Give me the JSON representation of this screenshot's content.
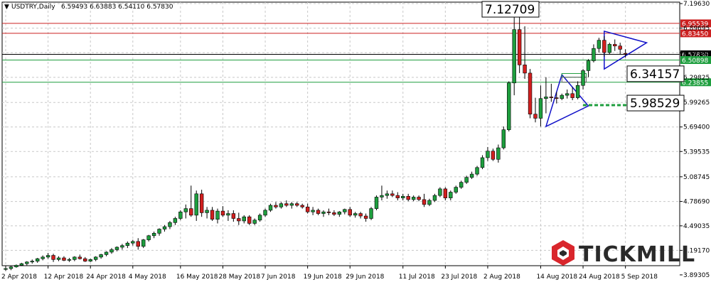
{
  "header": {
    "symbol_label": "USDTRY,Daily",
    "ohlc_text": "6.59493 6.63883 6.54110 6.57830",
    "triangle_glyph": "▼"
  },
  "logo": {
    "text": "TICKMILL",
    "icon": "tickmill-hexagon-logo-icon"
  },
  "colors": {
    "bull": "#1e9e3e",
    "bear": "#d21f1f",
    "grid": "#c8c8c8",
    "trend": "#1010c8",
    "resistance": "#cc2020",
    "support": "#1e9e3e",
    "current": "#000000"
  },
  "chart_data": {
    "type": "candlestick",
    "title": "USDTRY,Daily",
    "ylim": [
      3.78,
      7.24
    ],
    "y_ticks": [
      "7.19630",
      "6.89695",
      "6.59760",
      "6.29825",
      "5.99265",
      "5.69400",
      "5.39535",
      "5.08745",
      "4.78690",
      "4.49035",
      "4.19170",
      "3.89305"
    ],
    "x_ticks": [
      "2 Apr 2018",
      "12 Apr 2018",
      "24 Apr 2018",
      "4 May 2018",
      "16 May 2018",
      "28 May 2018",
      "7 Jun 2018",
      "19 Jun 2018",
      "29 Jun 2018",
      "11 Jul 2018",
      "23 Jul 2018",
      "2 Aug 2018",
      "14 Aug 2018",
      "24 Aug 2018",
      "5 Sep 2018"
    ],
    "x_tick_index": [
      0,
      8,
      16,
      24,
      33,
      41,
      49,
      57,
      65,
      75,
      83,
      91,
      101,
      109,
      117
    ],
    "grid": true,
    "price_levels": [
      {
        "label": "6.95539",
        "value": 6.95539,
        "kind": "resistance"
      },
      {
        "label": "6.83450",
        "value": 6.8345,
        "kind": "resistance"
      },
      {
        "label": "6.57830",
        "value": 6.5783,
        "kind": "current"
      },
      {
        "label": "6.50898",
        "value": 6.50898,
        "kind": "support"
      },
      {
        "label": "6.23855",
        "value": 6.23855,
        "kind": "support"
      }
    ],
    "callouts": [
      {
        "label": "7.12709",
        "value": 7.12709,
        "index": 104
      },
      {
        "label": "6.34157",
        "value": 6.34157,
        "index": 107
      },
      {
        "label": "5.98529",
        "value": 5.98529,
        "index": 108
      }
    ],
    "ohlc": [
      [
        3.96,
        3.99,
        3.94,
        3.97
      ],
      [
        3.97,
        4.0,
        3.95,
        3.99
      ],
      [
        3.99,
        4.02,
        3.98,
        4.01
      ],
      [
        4.01,
        4.04,
        4.0,
        4.03
      ],
      [
        4.03,
        4.06,
        4.01,
        4.05
      ],
      [
        4.05,
        4.08,
        4.03,
        4.06
      ],
      [
        4.06,
        4.1,
        4.04,
        4.09
      ],
      [
        4.09,
        4.13,
        4.07,
        4.11
      ],
      [
        4.11,
        4.16,
        4.09,
        4.13
      ],
      [
        4.13,
        4.15,
        4.05,
        4.08
      ],
      [
        4.08,
        4.12,
        4.06,
        4.1
      ],
      [
        4.1,
        4.12,
        4.06,
        4.07
      ],
      [
        4.07,
        4.1,
        4.05,
        4.08
      ],
      [
        4.08,
        4.12,
        4.06,
        4.11
      ],
      [
        4.11,
        4.14,
        4.08,
        4.09
      ],
      [
        4.09,
        4.11,
        4.05,
        4.06
      ],
      [
        4.06,
        4.09,
        4.05,
        4.08
      ],
      [
        4.08,
        4.12,
        4.06,
        4.11
      ],
      [
        4.11,
        4.15,
        4.09,
        4.14
      ],
      [
        4.14,
        4.18,
        4.12,
        4.17
      ],
      [
        4.17,
        4.22,
        4.15,
        4.2
      ],
      [
        4.2,
        4.24,
        4.18,
        4.23
      ],
      [
        4.23,
        4.27,
        4.2,
        4.25
      ],
      [
        4.25,
        4.3,
        4.22,
        4.28
      ],
      [
        4.28,
        4.32,
        4.25,
        4.3
      ],
      [
        4.3,
        4.34,
        4.2,
        4.24
      ],
      [
        4.24,
        4.33,
        4.22,
        4.32
      ],
      [
        4.32,
        4.38,
        4.3,
        4.37
      ],
      [
        4.37,
        4.42,
        4.34,
        4.4
      ],
      [
        4.4,
        4.46,
        4.37,
        4.45
      ],
      [
        4.45,
        4.5,
        4.42,
        4.48
      ],
      [
        4.48,
        4.55,
        4.45,
        4.53
      ],
      [
        4.53,
        4.6,
        4.5,
        4.58
      ],
      [
        4.58,
        4.68,
        4.56,
        4.66
      ],
      [
        4.66,
        4.75,
        4.58,
        4.7
      ],
      [
        4.7,
        4.98,
        4.6,
        4.62
      ],
      [
        4.62,
        4.92,
        4.55,
        4.88
      ],
      [
        4.88,
        4.93,
        4.6,
        4.65
      ],
      [
        4.65,
        4.72,
        4.58,
        4.68
      ],
      [
        4.68,
        4.72,
        4.55,
        4.57
      ],
      [
        4.57,
        4.7,
        4.52,
        4.67
      ],
      [
        4.67,
        4.73,
        4.6,
        4.62
      ],
      [
        4.62,
        4.68,
        4.55,
        4.64
      ],
      [
        4.64,
        4.68,
        4.54,
        4.58
      ],
      [
        4.58,
        4.65,
        4.5,
        4.55
      ],
      [
        4.55,
        4.62,
        4.52,
        4.6
      ],
      [
        4.6,
        4.62,
        4.5,
        4.52
      ],
      [
        4.52,
        4.58,
        4.5,
        4.56
      ],
      [
        4.56,
        4.64,
        4.54,
        4.62
      ],
      [
        4.62,
        4.7,
        4.6,
        4.68
      ],
      [
        4.68,
        4.76,
        4.66,
        4.74
      ],
      [
        4.74,
        4.78,
        4.7,
        4.72
      ],
      [
        4.72,
        4.78,
        4.7,
        4.76
      ],
      [
        4.76,
        4.8,
        4.72,
        4.74
      ],
      [
        4.74,
        4.78,
        4.7,
        4.76
      ],
      [
        4.76,
        4.78,
        4.72,
        4.74
      ],
      [
        4.74,
        4.76,
        4.7,
        4.72
      ],
      [
        4.72,
        4.76,
        4.64,
        4.66
      ],
      [
        4.66,
        4.72,
        4.62,
        4.68
      ],
      [
        4.68,
        4.7,
        4.62,
        4.64
      ],
      [
        4.64,
        4.68,
        4.6,
        4.66
      ],
      [
        4.66,
        4.7,
        4.62,
        4.65
      ],
      [
        4.65,
        4.68,
        4.61,
        4.63
      ],
      [
        4.63,
        4.67,
        4.6,
        4.66
      ],
      [
        4.66,
        4.7,
        4.63,
        4.69
      ],
      [
        4.69,
        4.72,
        4.6,
        4.62
      ],
      [
        4.62,
        4.66,
        4.59,
        4.64
      ],
      [
        4.64,
        4.66,
        4.58,
        4.61
      ],
      [
        4.61,
        4.64,
        4.54,
        4.58
      ],
      [
        4.58,
        4.72,
        4.56,
        4.7
      ],
      [
        4.7,
        4.86,
        4.68,
        4.84
      ],
      [
        4.84,
        4.98,
        4.8,
        4.86
      ],
      [
        4.86,
        4.92,
        4.82,
        4.88
      ],
      [
        4.88,
        4.92,
        4.84,
        4.86
      ],
      [
        4.86,
        4.9,
        4.8,
        4.83
      ],
      [
        4.83,
        4.88,
        4.8,
        4.85
      ],
      [
        4.85,
        4.88,
        4.79,
        4.81
      ],
      [
        4.81,
        4.86,
        4.79,
        4.84
      ],
      [
        4.84,
        4.86,
        4.79,
        4.81
      ],
      [
        4.81,
        4.88,
        4.72,
        4.75
      ],
      [
        4.75,
        4.82,
        4.73,
        4.8
      ],
      [
        4.8,
        4.88,
        4.78,
        4.86
      ],
      [
        4.86,
        4.96,
        4.84,
        4.94
      ],
      [
        4.94,
        4.96,
        4.8,
        4.83
      ],
      [
        4.83,
        4.92,
        4.8,
        4.9
      ],
      [
        4.9,
        4.98,
        4.88,
        4.96
      ],
      [
        4.96,
        5.04,
        4.94,
        5.02
      ],
      [
        5.02,
        5.1,
        5.0,
        5.08
      ],
      [
        5.08,
        5.15,
        5.06,
        5.12
      ],
      [
        5.12,
        5.22,
        5.1,
        5.2
      ],
      [
        5.2,
        5.35,
        5.18,
        5.32
      ],
      [
        5.32,
        5.45,
        5.28,
        5.4
      ],
      [
        5.4,
        5.43,
        5.28,
        5.3
      ],
      [
        5.3,
        5.48,
        5.26,
        5.44
      ],
      [
        5.44,
        5.7,
        5.42,
        5.66
      ],
      [
        5.66,
        6.25,
        5.64,
        6.23
      ],
      [
        6.23,
        7.13,
        6.08,
        6.88
      ],
      [
        6.88,
        7.12,
        6.35,
        6.45
      ],
      [
        6.45,
        6.92,
        6.28,
        6.35
      ],
      [
        6.35,
        6.4,
        5.8,
        5.85
      ],
      [
        5.85,
        6.05,
        5.75,
        5.8
      ],
      [
        5.8,
        6.2,
        5.7,
        6.04
      ],
      [
        6.04,
        6.3,
        5.86,
        6.06
      ],
      [
        6.06,
        6.22,
        6.0,
        6.05
      ],
      [
        6.05,
        6.12,
        5.98,
        6.04
      ],
      [
        6.04,
        6.1,
        6.02,
        6.08
      ],
      [
        6.08,
        6.15,
        6.04,
        6.1
      ],
      [
        6.1,
        6.18,
        6.02,
        6.05
      ],
      [
        6.05,
        6.25,
        6.03,
        6.2
      ],
      [
        6.2,
        6.4,
        6.15,
        6.38
      ],
      [
        6.38,
        6.52,
        6.3,
        6.5
      ],
      [
        6.5,
        6.7,
        6.48,
        6.65
      ],
      [
        6.65,
        6.78,
        6.6,
        6.75
      ],
      [
        6.75,
        6.8,
        6.55,
        6.6
      ],
      [
        6.6,
        6.72,
        6.58,
        6.7
      ],
      [
        6.7,
        6.76,
        6.62,
        6.68
      ],
      [
        6.68,
        6.72,
        6.58,
        6.64
      ],
      [
        6.59,
        6.64,
        6.54,
        6.58
      ]
    ],
    "drawings": {
      "pennant_1": [
        [
          102,
          5.7
        ],
        [
          105,
          6.33
        ],
        [
          110,
          5.95
        ]
      ],
      "pennant_2": [
        [
          113,
          6.86
        ],
        [
          121,
          6.72
        ],
        [
          113,
          6.4
        ]
      ],
      "rect_green": [
        [
          105,
          6.345
        ],
        [
          109.6,
          6.3
        ]
      ],
      "rect_white": [
        [
          105,
          6.3
        ],
        [
          109.6,
          6.24
        ]
      ],
      "dash_green": [
        [
          109,
          5.96
        ],
        [
          120,
          5.96
        ]
      ]
    }
  }
}
